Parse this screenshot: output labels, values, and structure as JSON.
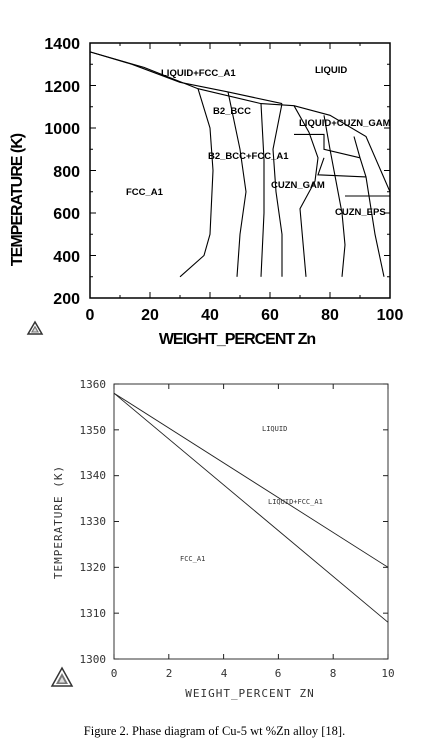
{
  "chart_data": [
    {
      "type": "line",
      "xlabel": "WEIGHT_PERCENT Zn",
      "ylabel": "TEMPERATURE (K)",
      "xlim": [
        0,
        100
      ],
      "ylim": [
        200,
        1400
      ],
      "xticks": [
        "0",
        "20",
        "40",
        "60",
        "80",
        "100"
      ],
      "yticks": [
        "200",
        "400",
        "600",
        "800",
        "1000",
        "1200",
        "1400"
      ],
      "regions": [
        "LIQUID+FCC_A1",
        "LIQUID",
        "B2_BCC",
        "LIQUID+CUZN_GAM",
        "B2_BCC+FCC_A1",
        "FCC_A1",
        "CUZN_GAM",
        "CUZN_EPS"
      ],
      "series": [
        {
          "values": [
            [
              0,
              1358
            ],
            [
              18,
              1285
            ],
            [
              36,
              1185
            ],
            [
              57,
              1115
            ],
            [
              68,
              1105
            ],
            [
              80,
              1060
            ],
            [
              92,
              960
            ],
            [
              100,
              700
            ]
          ]
        },
        {
          "values": [
            [
              0,
              1358
            ],
            [
              14,
              1300
            ],
            [
              30,
              1215
            ],
            [
              46,
              1170
            ],
            [
              64,
              1115
            ]
          ]
        },
        {
          "values": [
            [
              36,
              1185
            ],
            [
              40,
              1000
            ],
            [
              41,
              800
            ],
            [
              40,
              500
            ],
            [
              38,
              400
            ],
            [
              30,
              300
            ]
          ]
        },
        {
          "values": [
            [
              46,
              1170
            ],
            [
              50,
              900
            ],
            [
              52,
              700
            ],
            [
              50,
              500
            ],
            [
              49,
              300
            ]
          ]
        },
        {
          "values": [
            [
              57,
              1115
            ],
            [
              58,
              850
            ],
            [
              58,
              600
            ],
            [
              57,
              300
            ]
          ]
        },
        {
          "values": [
            [
              64,
              1115
            ],
            [
              61,
              900
            ],
            [
              62,
              700
            ],
            [
              64,
              500
            ],
            [
              64,
              300
            ]
          ]
        },
        {
          "values": [
            [
              68,
              1105
            ],
            [
              73,
              980
            ],
            [
              76,
              860
            ],
            [
              75,
              750
            ],
            [
              70,
              620
            ],
            [
              72,
              300
            ]
          ]
        },
        {
          "values": [
            [
              78,
              1060
            ],
            [
              80,
              900
            ],
            [
              82,
              750
            ],
            [
              84,
              600
            ],
            [
              85,
              450
            ],
            [
              84,
              300
            ]
          ]
        },
        {
          "values": [
            [
              88,
              960
            ],
            [
              90,
              860
            ],
            [
              92,
              770
            ],
            [
              93,
              680
            ],
            [
              95,
              500
            ],
            [
              98,
              300
            ]
          ]
        },
        {
          "values": [
            [
              68,
              970
            ],
            [
              78,
              970
            ],
            [
              78,
              900
            ],
            [
              90,
              860
            ]
          ]
        },
        {
          "values": [
            [
              78,
              860
            ],
            [
              76,
              780
            ],
            [
              92,
              770
            ]
          ]
        },
        {
          "values": [
            [
              85,
              680
            ],
            [
              100,
              680
            ]
          ]
        }
      ]
    },
    {
      "type": "line",
      "xlabel": "WEIGHT_PERCENT ZN",
      "ylabel": "TEMPERATURE (K)",
      "xlim": [
        0,
        10
      ],
      "ylim": [
        1300,
        1360
      ],
      "xticks": [
        "0",
        "2",
        "4",
        "6",
        "8",
        "10"
      ],
      "yticks": [
        "1300",
        "1310",
        "1320",
        "1330",
        "1340",
        "1350",
        "1360"
      ],
      "regions": [
        "LIQUID",
        "LIQUID+FCC_A1",
        "FCC_A1"
      ],
      "series": [
        {
          "values": [
            [
              0,
              1358
            ],
            [
              10,
              1320
            ]
          ]
        },
        {
          "values": [
            [
              0,
              1358
            ],
            [
              10,
              1308
            ]
          ]
        }
      ]
    }
  ],
  "caption": "Figure 2. Phase diagram of Cu-5 wt %Zn alloy [18]."
}
